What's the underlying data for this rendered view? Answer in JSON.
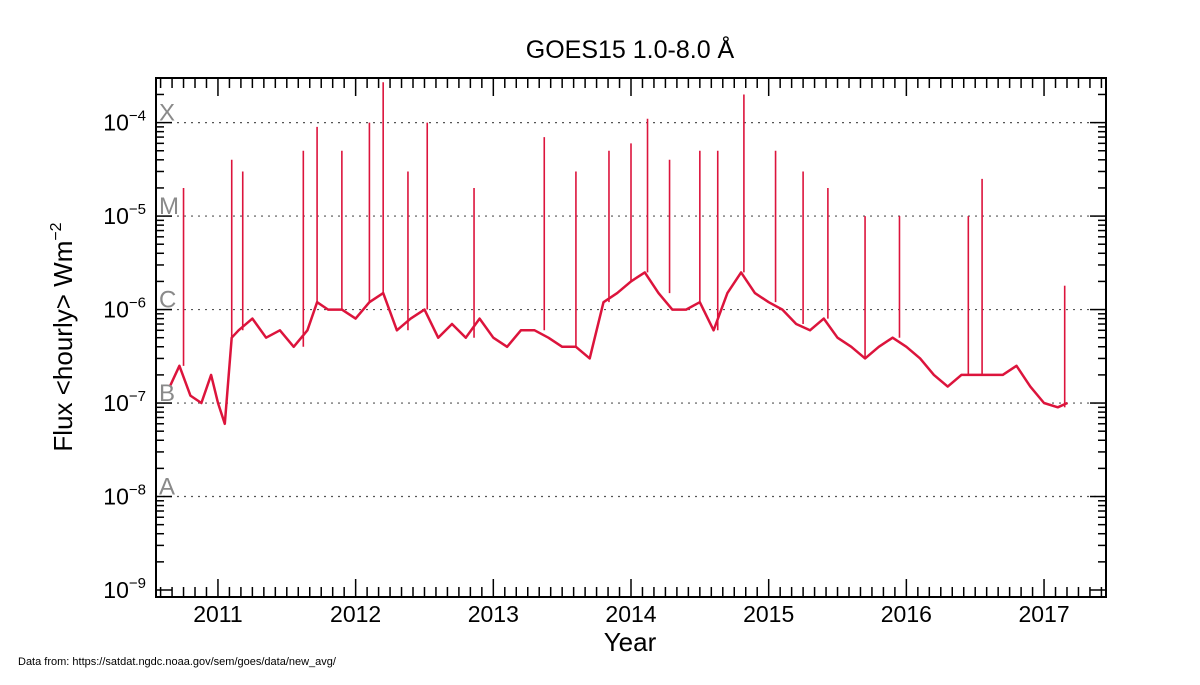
{
  "chart_data": {
    "type": "line",
    "title": "GOES15 1.0-8.0 Å",
    "xlabel": "Year",
    "ylabel_main": "Flux <hourly> Wm",
    "ylabel_exp": "−2",
    "yscale": "log",
    "xlim": [
      2010.55,
      2017.45
    ],
    "ylim": [
      1e-09,
      0.0003
    ],
    "x_ticks": [
      "2011",
      "2012",
      "2013",
      "2014",
      "2015",
      "2016",
      "2017"
    ],
    "x_tick_values": [
      2011,
      2012,
      2013,
      2014,
      2015,
      2016,
      2017
    ],
    "y_ticks": [
      {
        "value": 1e-09,
        "base": "10",
        "exp": "-9"
      },
      {
        "value": 1e-08,
        "base": "10",
        "exp": "-8"
      },
      {
        "value": 1e-07,
        "base": "10",
        "exp": "-7"
      },
      {
        "value": 1e-06,
        "base": "10",
        "exp": "-6"
      },
      {
        "value": 1e-05,
        "base": "10",
        "exp": "-5"
      },
      {
        "value": 0.0001,
        "base": "10",
        "exp": "-4"
      }
    ],
    "flare_classes": [
      {
        "label": "X",
        "value": 0.0001
      },
      {
        "label": "M",
        "value": 1e-05
      },
      {
        "label": "C",
        "value": 1e-06
      },
      {
        "label": "B",
        "value": 1e-07
      },
      {
        "label": "A",
        "value": 1e-08
      }
    ],
    "grid": "dotted horizontal lines at class thresholds",
    "series": [
      {
        "color": "#dc143c",
        "x": [
          2010.65,
          2010.72,
          2010.8,
          2010.88,
          2010.95,
          2011.0,
          2011.05,
          2011.1,
          2011.15,
          2011.25,
          2011.35,
          2011.45,
          2011.55,
          2011.65,
          2011.72,
          2011.8,
          2011.9,
          2012.0,
          2012.1,
          2012.2,
          2012.3,
          2012.4,
          2012.5,
          2012.6,
          2012.7,
          2012.8,
          2012.9,
          2013.0,
          2013.1,
          2013.2,
          2013.3,
          2013.4,
          2013.5,
          2013.6,
          2013.7,
          2013.8,
          2013.9,
          2014.0,
          2014.1,
          2014.2,
          2014.3,
          2014.4,
          2014.5,
          2014.6,
          2014.7,
          2014.8,
          2014.9,
          2015.0,
          2015.1,
          2015.2,
          2015.3,
          2015.4,
          2015.5,
          2015.6,
          2015.7,
          2015.8,
          2015.9,
          2016.0,
          2016.1,
          2016.2,
          2016.3,
          2016.4,
          2016.5,
          2016.6,
          2016.7,
          2016.8,
          2016.9,
          2017.0,
          2017.1,
          2017.17
        ],
        "y": [
          1.5e-07,
          2.5e-07,
          1.2e-07,
          1e-07,
          2e-07,
          1e-07,
          6e-08,
          5e-07,
          6e-07,
          8e-07,
          5e-07,
          6e-07,
          4e-07,
          6e-07,
          1.2e-06,
          1e-06,
          1e-06,
          8e-07,
          1.2e-06,
          1.5e-06,
          6e-07,
          8e-07,
          1e-06,
          5e-07,
          7e-07,
          5e-07,
          8e-07,
          5e-07,
          4e-07,
          6e-07,
          6e-07,
          5e-07,
          4e-07,
          4e-07,
          3e-07,
          1.2e-06,
          1.5e-06,
          2e-06,
          2.5e-06,
          1.5e-06,
          1e-06,
          1e-06,
          1.2e-06,
          6e-07,
          1.5e-06,
          2.5e-06,
          1.5e-06,
          1.2e-06,
          1e-06,
          7e-07,
          6e-07,
          8e-07,
          5e-07,
          4e-07,
          3e-07,
          4e-07,
          5e-07,
          4e-07,
          3e-07,
          2e-07,
          1.5e-07,
          2e-07,
          2e-07,
          2e-07,
          2e-07,
          2.5e-07,
          1.5e-07,
          1e-07,
          9e-08,
          1e-07
        ],
        "spikes": [
          {
            "x": 2010.75,
            "y": 2e-05
          },
          {
            "x": 2011.1,
            "y": 4e-05
          },
          {
            "x": 2011.18,
            "y": 3e-05
          },
          {
            "x": 2011.62,
            "y": 5e-05
          },
          {
            "x": 2011.72,
            "y": 9e-05
          },
          {
            "x": 2011.9,
            "y": 5e-05
          },
          {
            "x": 2012.1,
            "y": 0.0001
          },
          {
            "x": 2012.2,
            "y": 0.00027
          },
          {
            "x": 2012.38,
            "y": 3e-05
          },
          {
            "x": 2012.52,
            "y": 0.0001
          },
          {
            "x": 2012.86,
            "y": 2e-05
          },
          {
            "x": 2013.37,
            "y": 7e-05
          },
          {
            "x": 2013.6,
            "y": 3e-05
          },
          {
            "x": 2013.84,
            "y": 5e-05
          },
          {
            "x": 2014.0,
            "y": 6e-05
          },
          {
            "x": 2014.12,
            "y": 0.00011
          },
          {
            "x": 2014.28,
            "y": 4e-05
          },
          {
            "x": 2014.5,
            "y": 5e-05
          },
          {
            "x": 2014.63,
            "y": 5e-05
          },
          {
            "x": 2014.82,
            "y": 0.0002
          },
          {
            "x": 2015.05,
            "y": 5e-05
          },
          {
            "x": 2015.25,
            "y": 3e-05
          },
          {
            "x": 2015.43,
            "y": 2e-05
          },
          {
            "x": 2015.7,
            "y": 1e-05
          },
          {
            "x": 2015.95,
            "y": 1e-05
          },
          {
            "x": 2016.45,
            "y": 1e-05
          },
          {
            "x": 2016.55,
            "y": 2.5e-05
          },
          {
            "x": 2017.15,
            "y": 1.8e-06
          }
        ]
      }
    ]
  },
  "footer": {
    "source": "Data from: https://satdat.ngdc.noaa.gov/sem/goes/data/new_avg/"
  }
}
